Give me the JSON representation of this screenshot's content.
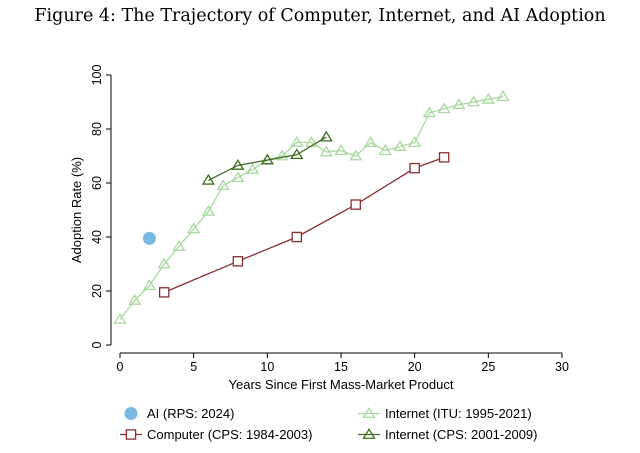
{
  "title": "Figure 4: The Trajectory of Computer, Internet, and AI Adoption",
  "chart_data": {
    "type": "line",
    "title": "Figure 4: The Trajectory of Computer, Internet, and AI Adoption",
    "xlabel": "Years Since First Mass-Market Product",
    "ylabel": "Adoption Rate (%)",
    "xlim": [
      0,
      30
    ],
    "ylim": [
      0,
      100
    ],
    "x_ticks": [
      0,
      5,
      10,
      15,
      20,
      25,
      30
    ],
    "y_ticks": [
      0,
      20,
      40,
      60,
      80,
      100
    ],
    "grid": false,
    "legend_position": "bottom",
    "series": [
      {
        "name": "AI (RPS: 2024)",
        "marker": "filled-circle",
        "color": "#7ab8e4",
        "points": [
          {
            "x": 2,
            "y": 39.5
          }
        ]
      },
      {
        "name": "Internet (ITU: 1995-2021)",
        "marker": "hollow-triangle",
        "color": "#a8d8a0",
        "points": [
          {
            "x": 0,
            "y": 9.5
          },
          {
            "x": 1,
            "y": 16.5
          },
          {
            "x": 2,
            "y": 22
          },
          {
            "x": 3,
            "y": 30
          },
          {
            "x": 4,
            "y": 36.5
          },
          {
            "x": 5,
            "y": 43
          },
          {
            "x": 6,
            "y": 49.5
          },
          {
            "x": 7,
            "y": 59
          },
          {
            "x": 8,
            "y": 62
          },
          {
            "x": 9,
            "y": 65
          },
          {
            "x": 10,
            "y": 68.5
          },
          {
            "x": 11,
            "y": 70
          },
          {
            "x": 12,
            "y": 75
          },
          {
            "x": 13,
            "y": 75
          },
          {
            "x": 14,
            "y": 71.5
          },
          {
            "x": 15,
            "y": 72
          },
          {
            "x": 16,
            "y": 70
          },
          {
            "x": 17,
            "y": 75
          },
          {
            "x": 18,
            "y": 72
          },
          {
            "x": 19,
            "y": 73.5
          },
          {
            "x": 20,
            "y": 75
          },
          {
            "x": 21,
            "y": 86
          },
          {
            "x": 22,
            "y": 87.5
          },
          {
            "x": 23,
            "y": 89
          },
          {
            "x": 24,
            "y": 90
          },
          {
            "x": 25,
            "y": 91
          },
          {
            "x": 26,
            "y": 92
          }
        ]
      },
      {
        "name": "Computer (CPS: 1984-2003)",
        "marker": "hollow-square",
        "color": "#8b2e2e",
        "points": [
          {
            "x": 3,
            "y": 19.5
          },
          {
            "x": 8,
            "y": 31
          },
          {
            "x": 12,
            "y": 40
          },
          {
            "x": 16,
            "y": 52
          },
          {
            "x": 20,
            "y": 65.5
          },
          {
            "x": 22,
            "y": 69.5
          }
        ]
      },
      {
        "name": "Internet (CPS: 2001-2009)",
        "marker": "hollow-triangle",
        "color": "#3d6b1f",
        "points": [
          {
            "x": 6,
            "y": 61
          },
          {
            "x": 8,
            "y": 66.5
          },
          {
            "x": 10,
            "y": 68.5
          },
          {
            "x": 12,
            "y": 70.5
          },
          {
            "x": 14,
            "y": 77
          }
        ]
      }
    ],
    "legend_order": [
      0,
      1,
      2,
      3
    ]
  }
}
